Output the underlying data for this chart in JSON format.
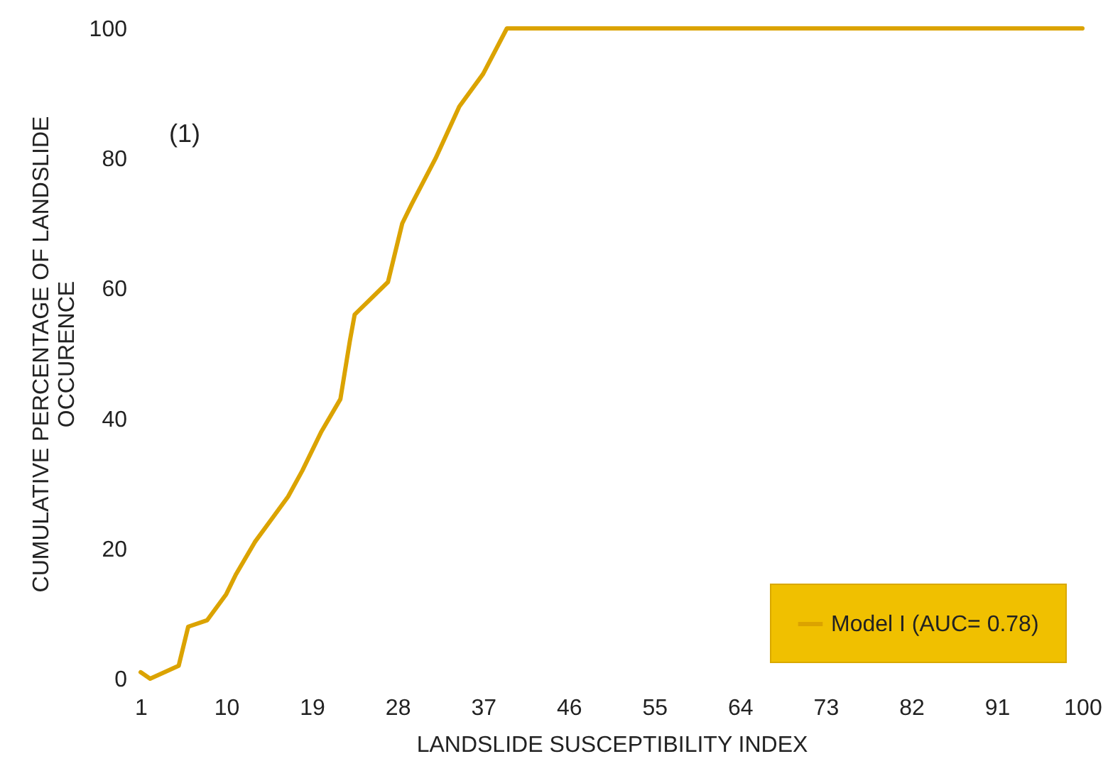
{
  "chart_data": {
    "type": "line",
    "xlabel": "LANDSLIDE SUSCEPTIBILITY INDEX",
    "ylabel": "CUMULATIVE PERCENTAGE OF LANDSLIDE OCCURENCE",
    "annotations": [
      "(1)"
    ],
    "x": [
      1,
      2,
      5,
      6,
      8,
      10,
      11,
      13,
      15,
      16.5,
      18,
      20,
      22,
      23,
      23.5,
      27,
      28.5,
      29.5,
      32,
      34.5,
      37,
      39.5,
      100
    ],
    "series": [
      {
        "name": "Model I (AUC= 0.78)",
        "color": "#dba300",
        "values": [
          1,
          0,
          2,
          8,
          9,
          13,
          16,
          21,
          25,
          28,
          32,
          38,
          43,
          52,
          56,
          61,
          70,
          73,
          80,
          88,
          93,
          100,
          100
        ]
      }
    ],
    "xlim": [
      1,
      100
    ],
    "xticks": [
      1,
      10,
      19,
      28,
      37,
      46,
      55,
      64,
      73,
      82,
      91,
      100
    ],
    "ylim": [
      0,
      100
    ],
    "yticks": [
      0,
      20,
      40,
      60,
      80,
      100
    ],
    "grid": false,
    "legend": "bottom right",
    "marker": "none",
    "line_style": "solid"
  }
}
